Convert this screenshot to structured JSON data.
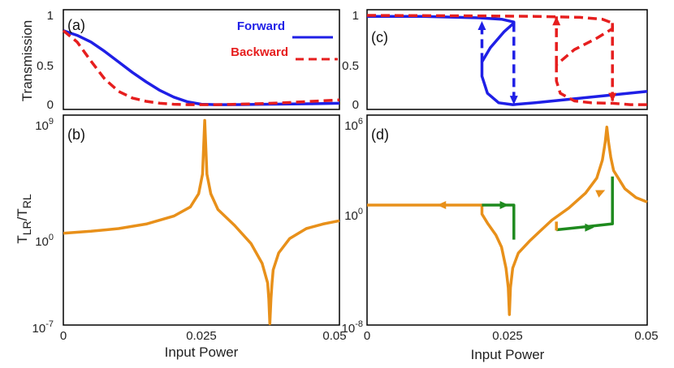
{
  "colors": {
    "forward": "#1f1fe6",
    "backward": "#e61e1e",
    "ratio": "#e8901a",
    "path": "#1e8a1e",
    "axis": "#000000"
  },
  "chart_data": [
    {
      "id": "a",
      "type": "line",
      "panel_label": "(a)",
      "ylabel": "Transmission",
      "xlabel": "",
      "xlim": [
        0,
        0.05
      ],
      "ylim": [
        -0.05,
        1.0
      ],
      "yticks": [
        "0",
        "0.5",
        "1"
      ],
      "xticks": [],
      "legend": {
        "placement": "top-right",
        "entries": [
          "Forward",
          "Backward"
        ]
      },
      "series": [
        {
          "name": "Forward",
          "color": "forward",
          "dash": "solid",
          "x": [
            0,
            0.0025,
            0.005,
            0.0075,
            0.01,
            0.0125,
            0.015,
            0.0175,
            0.02,
            0.0225,
            0.025,
            0.0275,
            0.03,
            0.0325,
            0.035,
            0.04,
            0.045,
            0.05
          ],
          "y": [
            0.78,
            0.73,
            0.66,
            0.56,
            0.45,
            0.34,
            0.24,
            0.15,
            0.08,
            0.03,
            0.005,
            0.0,
            0.0,
            0.001,
            0.003,
            0.006,
            0.01,
            0.015
          ]
        },
        {
          "name": "Backward",
          "color": "backward",
          "dash": "dashed",
          "x": [
            0,
            0.0025,
            0.005,
            0.0075,
            0.01,
            0.0125,
            0.015,
            0.0175,
            0.02,
            0.0225,
            0.025,
            0.0275,
            0.03,
            0.0325,
            0.035,
            0.04,
            0.045,
            0.05
          ],
          "y": [
            0.78,
            0.66,
            0.46,
            0.27,
            0.14,
            0.07,
            0.035,
            0.015,
            0.005,
            0.0,
            0.0,
            0.0,
            0.002,
            0.006,
            0.01,
            0.02,
            0.035,
            0.05
          ]
        }
      ]
    },
    {
      "id": "b",
      "type": "line",
      "panel_label": "(b)",
      "ylabel": "T_LR/T_RL",
      "xlabel": "Input Power",
      "xlim": [
        0,
        0.05
      ],
      "ylim_log10": [
        -7,
        9
      ],
      "yticks": [
        {
          "base": "10",
          "exp": "9"
        },
        {
          "base": "10",
          "exp": "0"
        },
        {
          "base": "10",
          "exp": "-7"
        }
      ],
      "xticks": [
        "0",
        "0.025",
        "0.05"
      ],
      "series": [
        {
          "name": "",
          "color": "ratio",
          "dash": "solid",
          "x": [
            0,
            0.005,
            0.01,
            0.015,
            0.02,
            0.023,
            0.0245,
            0.0252,
            0.0256,
            0.026,
            0.0267,
            0.028,
            0.031,
            0.034,
            0.036,
            0.037,
            0.0372,
            0.0374,
            0.0376,
            0.0378,
            0.038,
            0.039,
            0.041,
            0.044,
            0.047,
            0.05
          ],
          "log10y": [
            0.0,
            0.15,
            0.35,
            0.7,
            1.3,
            2.0,
            3.0,
            4.5,
            8.6,
            4.5,
            3.0,
            1.8,
            0.6,
            -0.8,
            -2.3,
            -3.8,
            -5.0,
            -6.9,
            -5.0,
            -3.8,
            -2.8,
            -1.5,
            -0.4,
            0.35,
            0.7,
            0.95
          ]
        }
      ]
    },
    {
      "id": "c",
      "type": "line",
      "panel_label": "(c)",
      "xlim": [
        0,
        0.05
      ],
      "ylim": [
        -0.05,
        1.0
      ],
      "yticks": [
        "0",
        "0.5",
        "1"
      ],
      "xticks": [],
      "series": [
        {
          "name": "",
          "color": "forward",
          "dash": "solid",
          "x": [
            0,
            0.01,
            0.02,
            0.024,
            0.0262,
            0.0262,
            0.0245,
            0.022,
            0.0205,
            0.0205,
            0.0215,
            0.0235,
            0.026,
            0.03,
            0.035,
            0.04,
            0.045,
            0.05
          ],
          "y": [
            0.93,
            0.93,
            0.915,
            0.9,
            0.87,
            0.86,
            0.77,
            0.6,
            0.45,
            0.3,
            0.12,
            0.02,
            0.0,
            0.02,
            0.05,
            0.08,
            0.11,
            0.14
          ]
        },
        {
          "name": "",
          "color": "backward",
          "dash": "dashed",
          "x": [
            0,
            0.02,
            0.03,
            0.038,
            0.042,
            0.0438,
            0.0438,
            0.041,
            0.037,
            0.0338,
            0.0338,
            0.0345,
            0.037,
            0.04,
            0.0438,
            0.047,
            0.05
          ],
          "y": [
            0.94,
            0.935,
            0.93,
            0.92,
            0.9,
            0.86,
            0.8,
            0.7,
            0.58,
            0.42,
            0.25,
            0.12,
            0.04,
            0.02,
            0.015,
            0.0,
            0.0
          ]
        },
        {
          "name": "",
          "color": "forward",
          "dash": "dashed",
          "x": [
            0.0205,
            0.0205
          ],
          "y": [
            0.45,
            0.86
          ]
        },
        {
          "name": "",
          "color": "forward",
          "dash": "dashed",
          "x": [
            0.0262,
            0.0262
          ],
          "y": [
            0.86,
            0.0
          ]
        },
        {
          "name": "",
          "color": "backward",
          "dash": "dashed",
          "x": [
            0.0338,
            0.0338
          ],
          "y": [
            0.42,
            0.93
          ]
        },
        {
          "name": "",
          "color": "backward",
          "dash": "dashed",
          "x": [
            0.0438,
            0.0438
          ],
          "y": [
            0.86,
            0.02
          ]
        }
      ],
      "arrows": [
        {
          "color": "forward",
          "x": 0.0205,
          "from": 0.55,
          "to": 0.88
        },
        {
          "color": "forward",
          "x": 0.0262,
          "from": 0.3,
          "to": 0.0
        },
        {
          "color": "backward",
          "x": 0.0338,
          "from": 0.6,
          "to": 0.93
        },
        {
          "color": "backward",
          "x": 0.0438,
          "from": 0.3,
          "to": 0.03
        }
      ]
    },
    {
      "id": "d",
      "type": "line",
      "panel_label": "(d)",
      "xlabel": "Input Power",
      "xlim": [
        0,
        0.05
      ],
      "ylim_log10": [
        -8,
        6
      ],
      "yticks": [
        {
          "base": "10",
          "exp": "6"
        },
        {
          "base": "10",
          "exp": "0"
        },
        {
          "base": "10",
          "exp": "-8"
        }
      ],
      "xticks": [
        "0",
        "0.025",
        "0.05"
      ],
      "series": [
        {
          "name": "",
          "color": "ratio",
          "dash": "solid",
          "x": [
            0,
            0.005,
            0.01,
            0.015,
            0.02,
            0.0205,
            0.0205,
            0.0215,
            0.023,
            0.024,
            0.0248,
            0.0252,
            0.0254,
            0.0256,
            0.026,
            0.027,
            0.029,
            0.031,
            0.033,
            0.036,
            0.039,
            0.041,
            0.042,
            0.0425,
            0.0428,
            0.0431,
            0.0435,
            0.044,
            0.046,
            0.048,
            0.05
          ],
          "log10y": [
            0.0,
            0.0,
            0.0,
            0.0,
            0.0,
            0.0,
            -0.6,
            -1.2,
            -2.0,
            -2.8,
            -4.2,
            -5.5,
            -7.3,
            -5.5,
            -4.2,
            -3.2,
            -2.4,
            -1.7,
            -1.0,
            -0.2,
            0.8,
            1.8,
            3.0,
            4.2,
            5.2,
            4.2,
            3.2,
            2.3,
            1.1,
            0.5,
            0.2
          ]
        },
        {
          "name": "",
          "color": "path",
          "dash": "solid",
          "x": [
            0.0205,
            0.0262,
            0.0262
          ],
          "log10y": [
            0.0,
            0.0,
            -2.3
          ]
        },
        {
          "name": "",
          "color": "path",
          "dash": "solid",
          "x": [
            0.0338,
            0.039,
            0.0438,
            0.0438
          ],
          "log10y": [
            -1.65,
            -1.45,
            -1.25,
            1.9
          ]
        },
        {
          "name": "",
          "color": "ratio",
          "dash": "solid",
          "x": [
            0.0338,
            0.0338
          ],
          "log10y": [
            -1.7,
            -1.1
          ]
        }
      ],
      "arrows": [
        {
          "color": "ratio",
          "x_from": 0.018,
          "x_to": 0.0125,
          "log10y": 0.0
        },
        {
          "color": "path",
          "x_from": 0.0225,
          "x_to": 0.0253,
          "log10y": 0.0
        },
        {
          "color": "path",
          "x_from": 0.036,
          "x_to": 0.0405,
          "log10y": -1.5
        },
        {
          "color": "ratio",
          "x_from": 0.0385,
          "x_to": 0.0425,
          "log10y_from": 0.3,
          "log10y_to": 1.0
        }
      ]
    }
  ]
}
